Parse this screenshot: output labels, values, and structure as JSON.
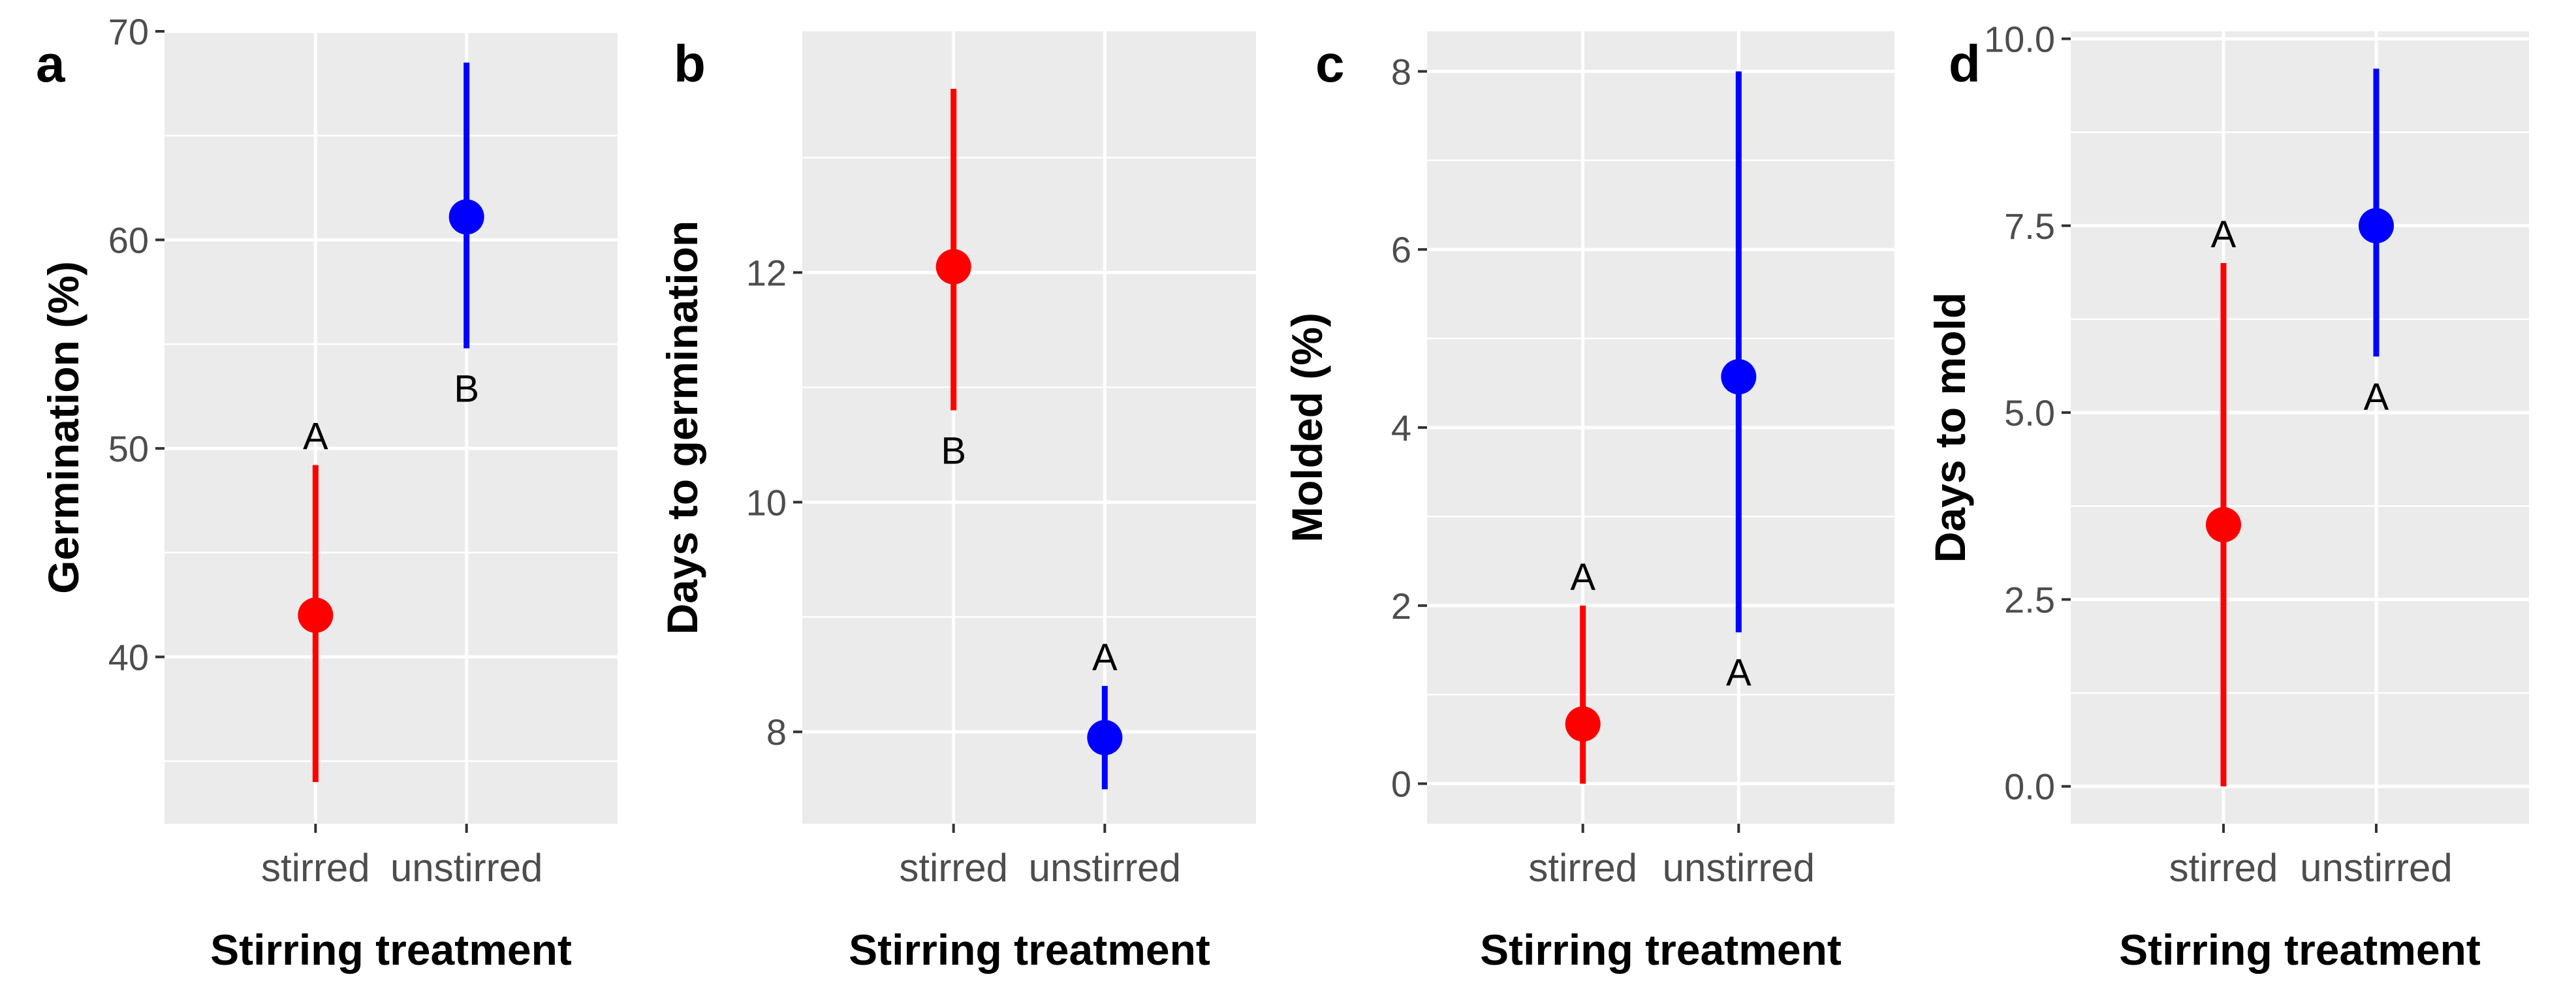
{
  "chart_data": [
    {
      "type": "scatter",
      "panel_label": "a",
      "title": "",
      "ylabel": "Germination (%)",
      "xlabel": "Stirring treatment",
      "categories": [
        "stirred",
        "unstirred"
      ],
      "ylim": [
        32,
        70
      ],
      "yticks": [
        40,
        50,
        60,
        70
      ],
      "yticklabels": [
        "40",
        "50",
        "60",
        "70"
      ],
      "grid": true,
      "series": [
        {
          "name": "stirred",
          "color": "#ff0000",
          "value": 42,
          "lower": 34,
          "upper": 49.2,
          "label": "A",
          "label_position": "above"
        },
        {
          "name": "unstirred",
          "color": "#0000ff",
          "value": 61.1,
          "lower": 54.8,
          "upper": 68.5,
          "label": "B",
          "label_position": "below"
        }
      ]
    },
    {
      "type": "scatter",
      "panel_label": "b",
      "title": "",
      "ylabel": "Days to germination",
      "xlabel": "Stirring treatment",
      "categories": [
        "stirred",
        "unstirred"
      ],
      "ylim": [
        7.2,
        14.1
      ],
      "yticks": [
        8,
        10,
        12
      ],
      "yticklabels": [
        "8",
        "10",
        "12"
      ],
      "grid": true,
      "series": [
        {
          "name": "stirred",
          "color": "#ff0000",
          "value": 12.05,
          "lower": 10.8,
          "upper": 13.6,
          "label": "B",
          "label_position": "below"
        },
        {
          "name": "unstirred",
          "color": "#0000ff",
          "value": 7.95,
          "lower": 7.5,
          "upper": 8.4,
          "label": "A",
          "label_position": "above"
        }
      ]
    },
    {
      "type": "scatter",
      "panel_label": "c",
      "title": "",
      "ylabel": "Molded (%)",
      "xlabel": "Stirring treatment",
      "categories": [
        "stirred",
        "unstirred"
      ],
      "ylim": [
        -0.45,
        8.45
      ],
      "yticks": [
        0,
        2,
        4,
        6,
        8
      ],
      "yticklabels": [
        "0",
        "2",
        "4",
        "6",
        "8"
      ],
      "grid": true,
      "series": [
        {
          "name": "stirred",
          "color": "#ff0000",
          "value": 0.67,
          "lower": 0,
          "upper": 2,
          "label": "A",
          "label_position": "above"
        },
        {
          "name": "unstirred",
          "color": "#0000ff",
          "value": 4.57,
          "lower": 1.7,
          "upper": 8,
          "label": "A",
          "label_position": "below"
        }
      ]
    },
    {
      "type": "scatter",
      "panel_label": "d",
      "title": "",
      "ylabel": "Days to mold",
      "xlabel": "Stirring treatment",
      "categories": [
        "stirred",
        "unstirred"
      ],
      "ylim": [
        -0.5,
        10.1
      ],
      "yticks": [
        0,
        2.5,
        5,
        7.5,
        10
      ],
      "yticklabels": [
        "0.0",
        "2.5",
        "5.0",
        "7.5",
        "10.0"
      ],
      "grid": true,
      "series": [
        {
          "name": "stirred",
          "color": "#ff0000",
          "value": 3.5,
          "lower": 0,
          "upper": 7,
          "label": "A",
          "label_position": "above"
        },
        {
          "name": "unstirred",
          "color": "#0000ff",
          "value": 7.5,
          "lower": 5.75,
          "upper": 9.6,
          "label": "A",
          "label_position": "below"
        }
      ]
    }
  ]
}
